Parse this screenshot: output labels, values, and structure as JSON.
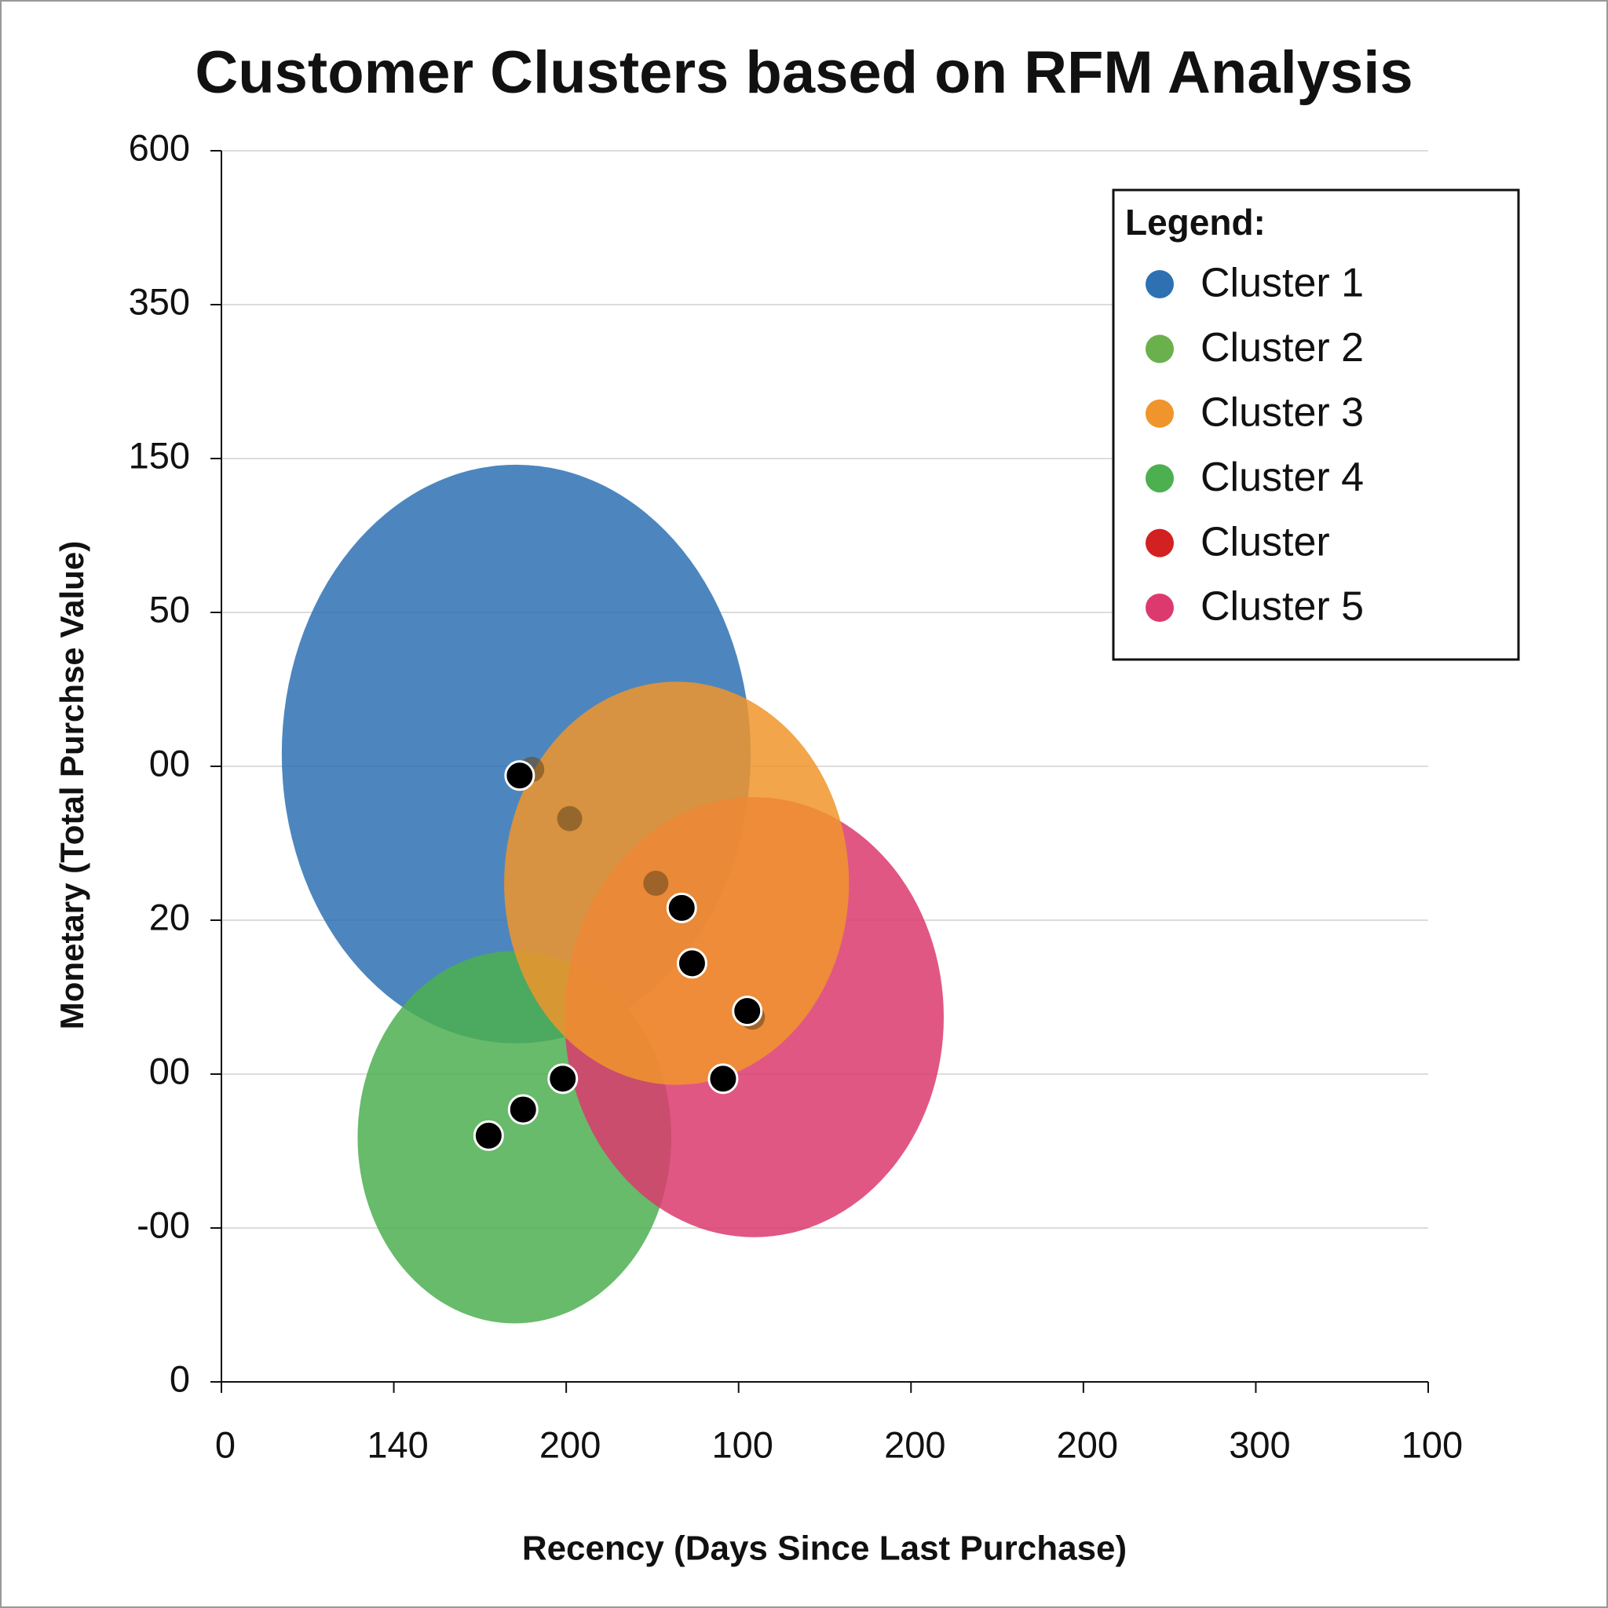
{
  "chart_data": {
    "type": "scatter",
    "title": "Customer Clusters based on RFM Analysis",
    "x_label": "Recency (Days Since Last Purchase)",
    "y_label": "Monetary (Total Purchse Value)",
    "xlim": [
      0,
      7
    ],
    "ylim": [
      0,
      8
    ],
    "xticks": [
      0,
      {
        "value": 1,
        "label": "140"
      },
      {
        "value": 2,
        "label": "200"
      },
      {
        "value": 3,
        "label": "100"
      },
      {
        "value": 4,
        "label": "200"
      },
      {
        "value": 5,
        "label": "200"
      },
      {
        "value": 6,
        "label": "300"
      },
      {
        "value": 7,
        "label": "100"
      }
    ],
    "yticks": [
      0,
      {
        "value": 1,
        "label": "-00"
      },
      {
        "value": 2,
        "label": "00"
      },
      {
        "value": 3,
        "label": "20"
      },
      {
        "value": 4,
        "label": "00"
      },
      {
        "value": 5,
        "label": "50"
      },
      {
        "value": 6,
        "label": "150"
      },
      {
        "value": 7,
        "label": "350"
      },
      {
        "value": 8,
        "label": "600"
      }
    ],
    "grid": true,
    "legend_title": "Legend:",
    "legend_position": "upper-right",
    "series": [
      {
        "name": "Cluster 1",
        "color": "#2e71b3",
        "x": [
          1.71
        ],
        "y": [
          4.08
        ],
        "x_radius": [
          1.36
        ],
        "y_radius": [
          1.88
        ]
      },
      {
        "name": "Cluster 2",
        "color": "#6ab04c"
      },
      {
        "name": "Cluster 3",
        "color": "#f0952b",
        "x": [
          2.64
        ],
        "y": [
          3.24
        ],
        "x_radius": [
          1.0
        ],
        "y_radius": [
          1.31
        ]
      },
      {
        "name": "Cluster 4",
        "color": "#4caf50",
        "x": [
          1.7
        ],
        "y": [
          1.59
        ],
        "x_radius": [
          0.91
        ],
        "y_radius": [
          1.21
        ]
      },
      {
        "name": "Cluster",
        "color": "#d32020"
      },
      {
        "name": "Cluster 5",
        "color": "#dc3a6e",
        "x": [
          3.09
        ],
        "y": [
          2.37
        ],
        "x_radius": [
          1.1
        ],
        "y_radius": [
          1.43
        ]
      }
    ],
    "ellipse_order": [
      0,
      3,
      5,
      2
    ],
    "shadow_points": {
      "color": "#6b4a1e",
      "x": [
        1.8,
        2.02,
        2.52,
        3.08
      ],
      "y": [
        3.98,
        3.66,
        3.24,
        2.37
      ]
    },
    "points": {
      "color": "#000000",
      "x": [
        1.73,
        2.67,
        2.73,
        3.05,
        2.91,
        1.98,
        1.75,
        1.55
      ],
      "y": [
        3.94,
        3.08,
        2.72,
        2.41,
        1.97,
        1.97,
        1.77,
        1.6
      ]
    }
  }
}
